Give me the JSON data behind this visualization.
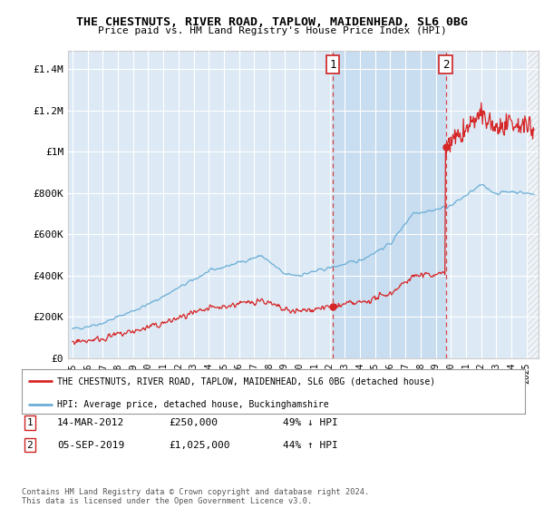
{
  "title": "THE CHESTNUTS, RIVER ROAD, TAPLOW, MAIDENHEAD, SL6 0BG",
  "subtitle": "Price paid vs. HM Land Registry's House Price Index (HPI)",
  "ylabel_ticks": [
    "£0",
    "£200K",
    "£400K",
    "£600K",
    "£800K",
    "£1M",
    "£1.2M",
    "£1.4M"
  ],
  "ytick_values": [
    0,
    200000,
    400000,
    600000,
    800000,
    1000000,
    1200000,
    1400000
  ],
  "ylim": [
    0,
    1490000
  ],
  "xlim_start": 1994.7,
  "xlim_end": 2025.8,
  "background_color": "#ffffff",
  "plot_bg_color": "#ddeaf5",
  "plot_bg_shaded": "#c8ddf0",
  "grid_color": "#ffffff",
  "transaction1_price": 250000,
  "transaction1_x": 2012.2,
  "transaction2_price": 1025000,
  "transaction2_x": 2019.67,
  "legend_property": "THE CHESTNUTS, RIVER ROAD, TAPLOW, MAIDENHEAD, SL6 0BG (detached house)",
  "legend_hpi": "HPI: Average price, detached house, Buckinghamshire",
  "copyright": "Contains HM Land Registry data © Crown copyright and database right 2024.\nThis data is licensed under the Open Government Licence v3.0.",
  "hpi_color": "#6baed6",
  "property_color": "#d62728",
  "dashed_line_color": "#d62728"
}
